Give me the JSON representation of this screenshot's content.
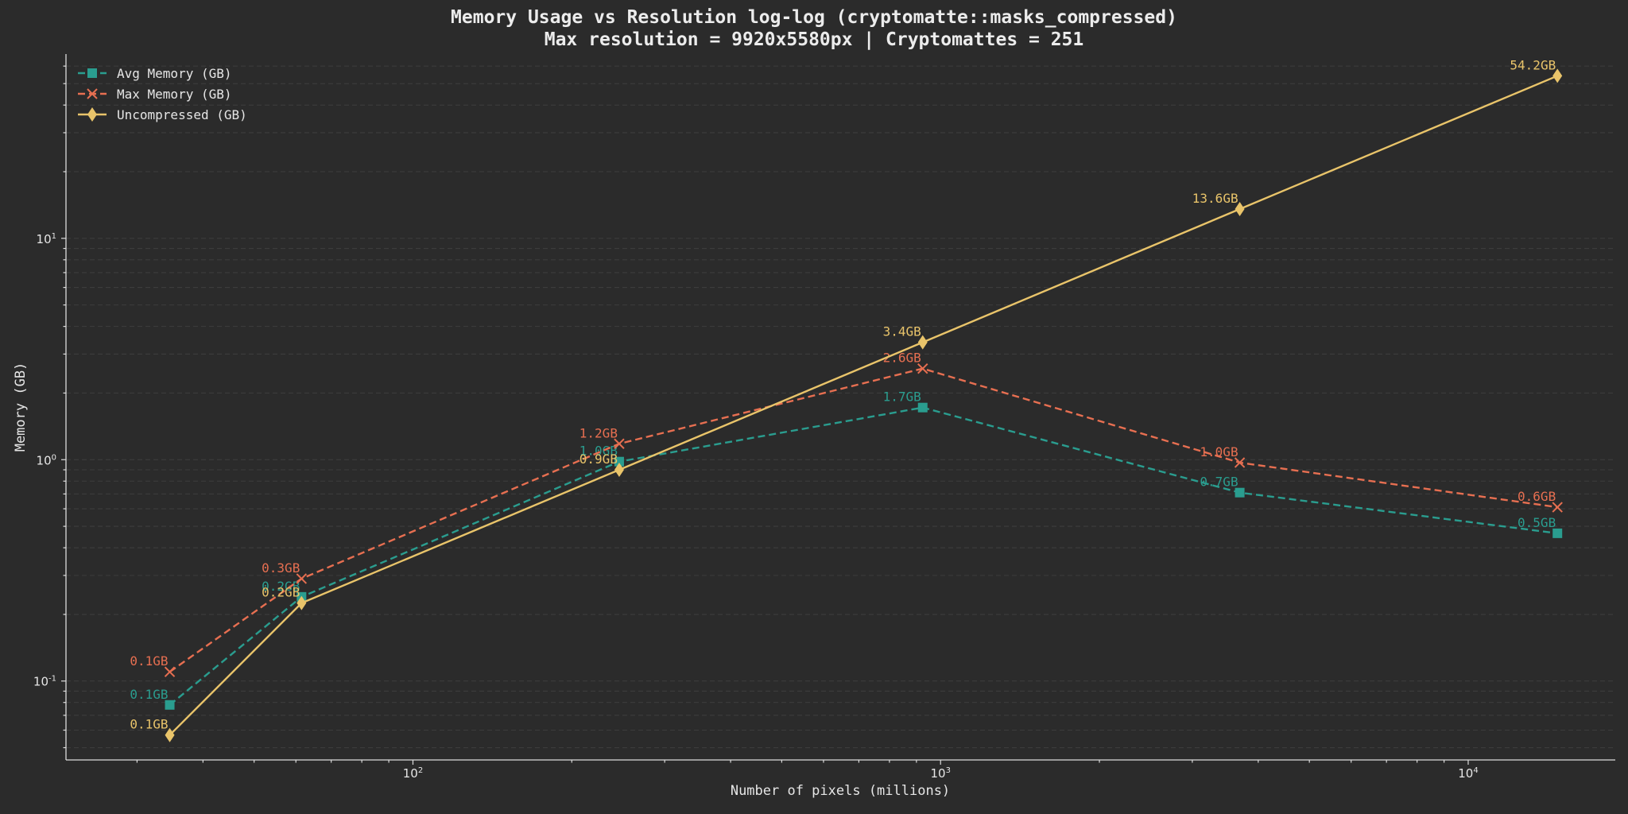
{
  "chart_data": {
    "type": "line",
    "title": "Memory Usage vs Resolution log-log (cryptomatte::masks_compressed)",
    "subtitle": "Max resolution = 9920x5580px | Cryptomattes = 251",
    "xlabel": "Number of pixels (millions)",
    "ylabel": "Memory (GB)",
    "xscale": "log",
    "yscale": "log",
    "xlim": [
      22,
      19000
    ],
    "ylim": [
      0.044,
      68
    ],
    "x_ticks": [
      100,
      1000,
      10000
    ],
    "x_tick_labels": [
      "10",
      "10",
      "10"
    ],
    "x_tick_exponents": [
      "2",
      "3",
      "4"
    ],
    "y_ticks": [
      0.1,
      1,
      10
    ],
    "y_tick_labels": [
      "10",
      "10",
      "10"
    ],
    "y_tick_exponents": [
      "-1",
      "0",
      "1"
    ],
    "grid": true,
    "legend_position": "top-left",
    "x": [
      34.6,
      61.5,
      246,
      925,
      3690,
      14760
    ],
    "series": [
      {
        "name": "Avg Memory (GB)",
        "color": "#2a9d8f",
        "marker": "square",
        "linestyle": "dashed",
        "values": [
          0.078,
          0.24,
          0.98,
          1.72,
          0.71,
          0.465
        ],
        "labels": [
          "0.1GB",
          "0.2GB",
          "1.0GB",
          "1.7GB",
          "0.7GB",
          "0.5GB"
        ]
      },
      {
        "name": "Max Memory (GB)",
        "color": "#e76f51",
        "marker": "x",
        "linestyle": "dashed",
        "values": [
          0.11,
          0.29,
          1.18,
          2.58,
          0.97,
          0.61
        ],
        "labels": [
          "0.1GB",
          "0.3GB",
          "1.2GB",
          "2.6GB",
          "1.0GB",
          "0.6GB"
        ]
      },
      {
        "name": "Uncompressed (GB)",
        "color": "#e9c46a",
        "marker": "diamond",
        "linestyle": "solid",
        "values": [
          0.057,
          0.225,
          0.9,
          3.39,
          13.56,
          54.2
        ],
        "labels": [
          "0.1GB",
          "0.2GB",
          "0.9GB",
          "3.4GB",
          "13.6GB",
          "54.2GB"
        ]
      }
    ]
  }
}
